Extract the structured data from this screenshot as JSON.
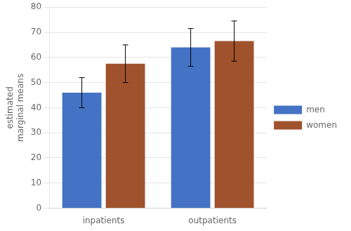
{
  "chart_data": {
    "type": "bar",
    "categories": [
      "inpatients",
      "outpatients"
    ],
    "series": [
      {
        "name": "men",
        "color": "#4472C4",
        "values": [
          46.0,
          64.0
        ],
        "errors": [
          6.0,
          7.5
        ]
      },
      {
        "name": "women",
        "color": "#A0522D",
        "values": [
          57.5,
          66.5
        ],
        "errors": [
          7.5,
          8.0
        ]
      }
    ],
    "ylabel": "estimated\nmarginal means",
    "ylim": [
      0,
      80
    ],
    "yticks": [
      0,
      10,
      20,
      30,
      40,
      50,
      60,
      70,
      80
    ],
    "grid": true,
    "legend": "right"
  }
}
